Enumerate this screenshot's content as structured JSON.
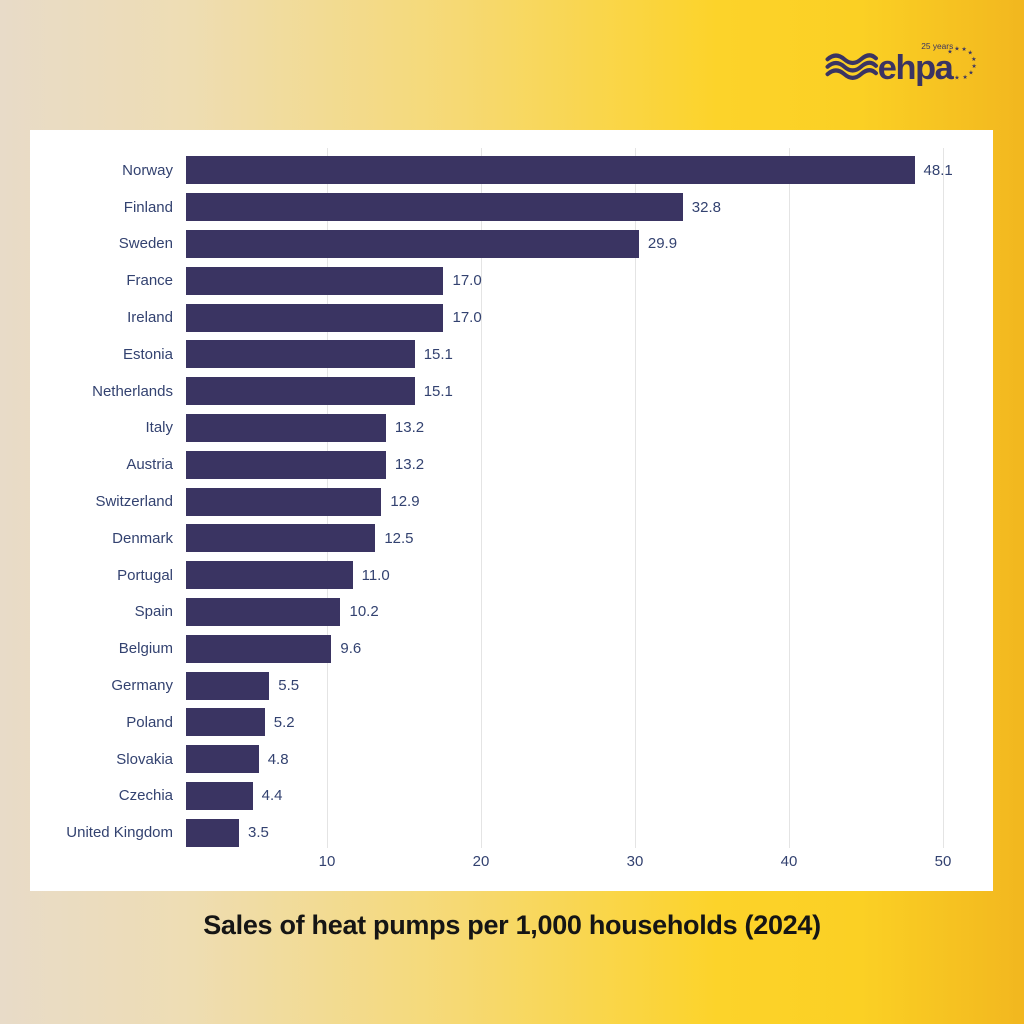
{
  "logo": {
    "brand": "ehpa",
    "anniversary": "25 years",
    "color": "#3a3462"
  },
  "chart_data": {
    "type": "bar",
    "orientation": "horizontal",
    "title": "Sales of heat pumps per 1,000 households (2024)",
    "categories": [
      "Norway",
      "Finland",
      "Sweden",
      "France",
      "Ireland",
      "Estonia",
      "Netherlands",
      "Italy",
      "Austria",
      "Switzerland",
      "Denmark",
      "Portugal",
      "Spain",
      "Belgium",
      "Germany",
      "Poland",
      "Slovakia",
      "Czechia",
      "United Kingdom"
    ],
    "values": [
      48.1,
      32.8,
      29.9,
      17.0,
      17.0,
      15.1,
      15.1,
      13.2,
      13.2,
      12.9,
      12.5,
      11.0,
      10.2,
      9.6,
      5.5,
      5.2,
      4.8,
      4.4,
      3.5
    ],
    "value_labels": [
      "48.1",
      "32.8",
      "29.9",
      "17.0",
      "17.0",
      "15.1",
      "15.1",
      "13.2",
      "13.2",
      "12.9",
      "12.5",
      "11.0",
      "10.2",
      "9.6",
      "5.5",
      "5.2",
      "4.8",
      "4.4",
      "3.5"
    ],
    "x_ticks": [
      10,
      20,
      30,
      40,
      50
    ],
    "xlim": [
      0,
      51.3
    ],
    "grid": true,
    "legend_position": "none",
    "bar_color": "#3a3462",
    "label_color": "#334270",
    "grid_color": "#e4e4e4",
    "background_card_color": "#ffffff",
    "title_color": "#151515"
  }
}
